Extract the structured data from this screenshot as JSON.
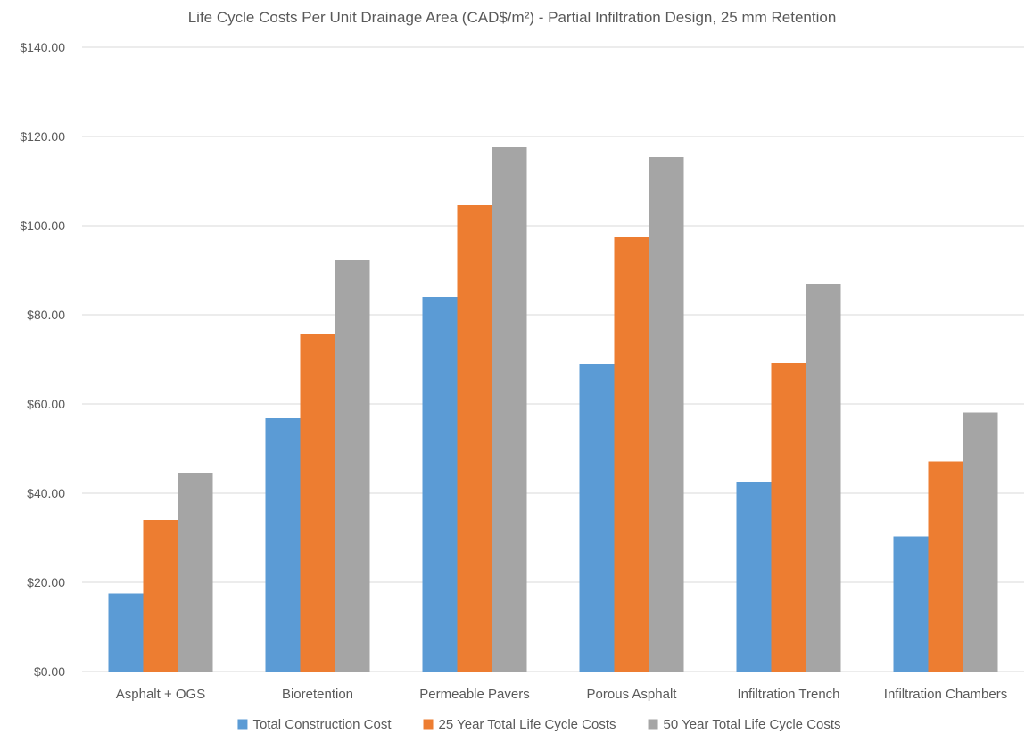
{
  "chart_data": {
    "type": "bar",
    "title": "Life Cycle Costs Per Unit Drainage Area (CAD$/m²) - Partial Infiltration Design, 25 mm Retention",
    "xlabel": "",
    "ylabel": "",
    "ylim": [
      0,
      140
    ],
    "yticks": [
      0,
      20,
      40,
      60,
      80,
      100,
      120,
      140
    ],
    "ytick_labels": [
      "$0.00",
      "$20.00",
      "$40.00",
      "$60.00",
      "$80.00",
      "$100.00",
      "$120.00",
      "$140.00"
    ],
    "grid": true,
    "legend_position": "bottom",
    "categories": [
      "Asphalt + OGS",
      "Bioretention",
      "Permeable Pavers",
      "Porous Asphalt",
      "Infiltration Trench",
      "Infiltration Chambers"
    ],
    "series": [
      {
        "name": "Total Construction Cost",
        "color": "#5B9BD5",
        "values": [
          17.5,
          56.8,
          84.0,
          69.0,
          42.6,
          30.3
        ]
      },
      {
        "name": "25 Year Total Life Cycle Costs",
        "color": "#ED7D31",
        "values": [
          34.0,
          75.7,
          104.6,
          97.4,
          69.2,
          47.1
        ]
      },
      {
        "name": "50 Year Total Life Cycle Costs",
        "color": "#A5A5A5",
        "values": [
          44.6,
          92.3,
          117.6,
          115.4,
          87.0,
          58.1
        ]
      }
    ],
    "gridline_color": "#D9D9D9",
    "text_color": "#595959"
  }
}
